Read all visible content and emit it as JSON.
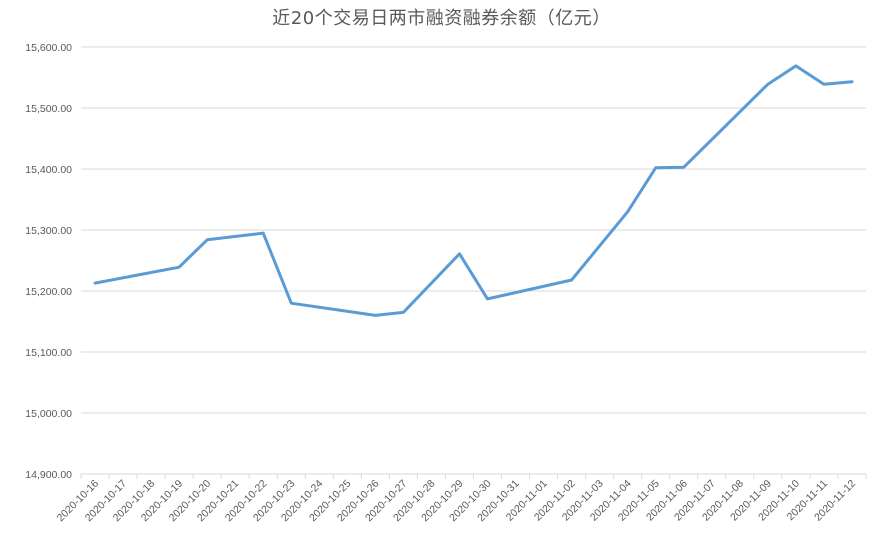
{
  "chart_data": {
    "type": "line",
    "title": "近20个交易日两市融资融券余额（亿元）",
    "xlabel": "",
    "ylabel": "",
    "ylim": [
      14900,
      15600
    ],
    "yticks": [
      14900,
      15000,
      15100,
      15200,
      15300,
      15400,
      15500,
      15600
    ],
    "ytick_labels": [
      "14,900.00",
      "15,000.00",
      "15,100.00",
      "15,200.00",
      "15,300.00",
      "15,400.00",
      "15,500.00",
      "15,600.00"
    ],
    "grid": true,
    "legend": "none",
    "line_color": "#5B9BD5",
    "categories": [
      "2020-10-16",
      "2020-10-17",
      "2020-10-18",
      "2020-10-19",
      "2020-10-20",
      "2020-10-21",
      "2020-10-22",
      "2020-10-23",
      "2020-10-24",
      "2020-10-25",
      "2020-10-26",
      "2020-10-27",
      "2020-10-28",
      "2020-10-29",
      "2020-10-30",
      "2020-10-31",
      "2020-11-01",
      "2020-11-02",
      "2020-11-03",
      "2020-11-04",
      "2020-11-05",
      "2020-11-06",
      "2020-11-07",
      "2020-11-08",
      "2020-11-09",
      "2020-11-10",
      "2020-11-11",
      "2020-11-12"
    ],
    "series": [
      {
        "name": "两市融资融券余额",
        "points": [
          {
            "x": "2020-10-16",
            "y": 15213
          },
          {
            "x": "2020-10-19",
            "y": 15239
          },
          {
            "x": "2020-10-20",
            "y": 15284
          },
          {
            "x": "2020-10-22",
            "y": 15295
          },
          {
            "x": "2020-10-23",
            "y": 15180
          },
          {
            "x": "2020-10-26",
            "y": 15160
          },
          {
            "x": "2020-10-27",
            "y": 15165
          },
          {
            "x": "2020-10-29",
            "y": 15261
          },
          {
            "x": "2020-10-30",
            "y": 15187
          },
          {
            "x": "2020-11-02",
            "y": 15218
          },
          {
            "x": "2020-11-04",
            "y": 15330
          },
          {
            "x": "2020-11-05",
            "y": 15402
          },
          {
            "x": "2020-11-06",
            "y": 15403
          },
          {
            "x": "2020-11-09",
            "y": 15539
          },
          {
            "x": "2020-11-10",
            "y": 15569
          },
          {
            "x": "2020-11-11",
            "y": 15539
          },
          {
            "x": "2020-11-12",
            "y": 15543
          }
        ]
      }
    ]
  }
}
